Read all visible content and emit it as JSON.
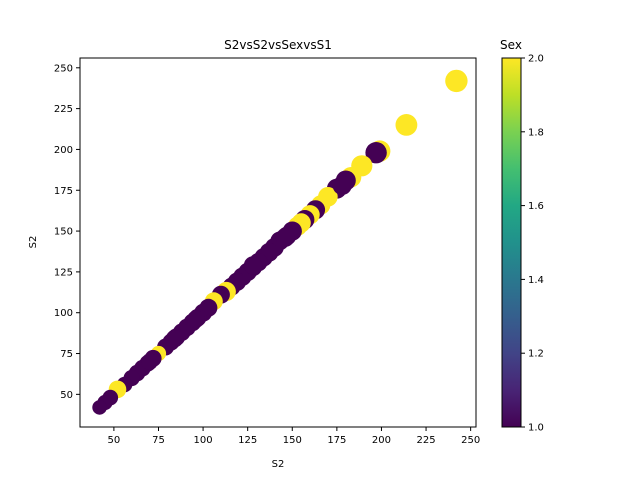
{
  "chart_data": {
    "type": "scatter",
    "title": "S2vsS2vsSexvsS1",
    "xlabel": "S2",
    "ylabel": "S2",
    "xlim": [
      31,
      253
    ],
    "ylim": [
      30,
      256
    ],
    "xticks": [
      50,
      75,
      100,
      125,
      150,
      175,
      200,
      225,
      250
    ],
    "yticks": [
      50,
      75,
      100,
      125,
      150,
      175,
      200,
      225,
      250
    ],
    "colorbar": {
      "label": "Sex",
      "range": [
        1.0,
        2.0
      ],
      "ticks": [
        "1.0",
        "1.2",
        "1.4",
        "1.6",
        "1.8",
        "2.0"
      ],
      "colormap": "viridis"
    },
    "grid": false,
    "points": [
      [
        242,
        242,
        2,
        325
      ],
      [
        214,
        215,
        2,
        310
      ],
      [
        199,
        199,
        2,
        300
      ],
      [
        197,
        198,
        1,
        300
      ],
      [
        189,
        190,
        2,
        290
      ],
      [
        183,
        183,
        2,
        270
      ],
      [
        180,
        181,
        1,
        260
      ],
      [
        175,
        176,
        1,
        260
      ],
      [
        170,
        171,
        2,
        250
      ],
      [
        166,
        166,
        2,
        240
      ],
      [
        163,
        163,
        1,
        240
      ],
      [
        160,
        160,
        2,
        240
      ],
      [
        157,
        157,
        1,
        240
      ],
      [
        155,
        155,
        2,
        240
      ],
      [
        153,
        153,
        2,
        240
      ],
      [
        150,
        150,
        1,
        240
      ],
      [
        147,
        147,
        1,
        230
      ],
      [
        143,
        144,
        1,
        230
      ],
      [
        140,
        140,
        1,
        230
      ],
      [
        137,
        137,
        1,
        230
      ],
      [
        134,
        134,
        1,
        220
      ],
      [
        131,
        131,
        1,
        220
      ],
      [
        128,
        128,
        1,
        220
      ],
      [
        125,
        125,
        1,
        220
      ],
      [
        122,
        122,
        1,
        220
      ],
      [
        119,
        119,
        1,
        220
      ],
      [
        116,
        116,
        1,
        210
      ],
      [
        113,
        113,
        2,
        240
      ],
      [
        110,
        111,
        1,
        210
      ],
      [
        106,
        107,
        2,
        210
      ],
      [
        103,
        103,
        1,
        210
      ],
      [
        100,
        100,
        1,
        210
      ],
      [
        97,
        97,
        1,
        200
      ],
      [
        94,
        94,
        1,
        200
      ],
      [
        91,
        91,
        1,
        200
      ],
      [
        88,
        88,
        1,
        200
      ],
      [
        85,
        85,
        1,
        200
      ],
      [
        82,
        82,
        1,
        190
      ],
      [
        79,
        79,
        1,
        190
      ],
      [
        75,
        75,
        2,
        150
      ],
      [
        72,
        72,
        1,
        190
      ],
      [
        69,
        69,
        1,
        180
      ],
      [
        66,
        66,
        1,
        180
      ],
      [
        63,
        63,
        1,
        180
      ],
      [
        60,
        60,
        1,
        170
      ],
      [
        56,
        56,
        1,
        160
      ],
      [
        52,
        53,
        2,
        200
      ],
      [
        48,
        48,
        1,
        160
      ],
      [
        45,
        45,
        1,
        150
      ],
      [
        42,
        42,
        1,
        140
      ],
      [
        178,
        178,
        1,
        240
      ],
      [
        146,
        146,
        1,
        230
      ],
      [
        128,
        129,
        1,
        220
      ],
      [
        96,
        96,
        1,
        200
      ],
      [
        84,
        84,
        1,
        200
      ],
      [
        70,
        70,
        1,
        180
      ]
    ]
  }
}
